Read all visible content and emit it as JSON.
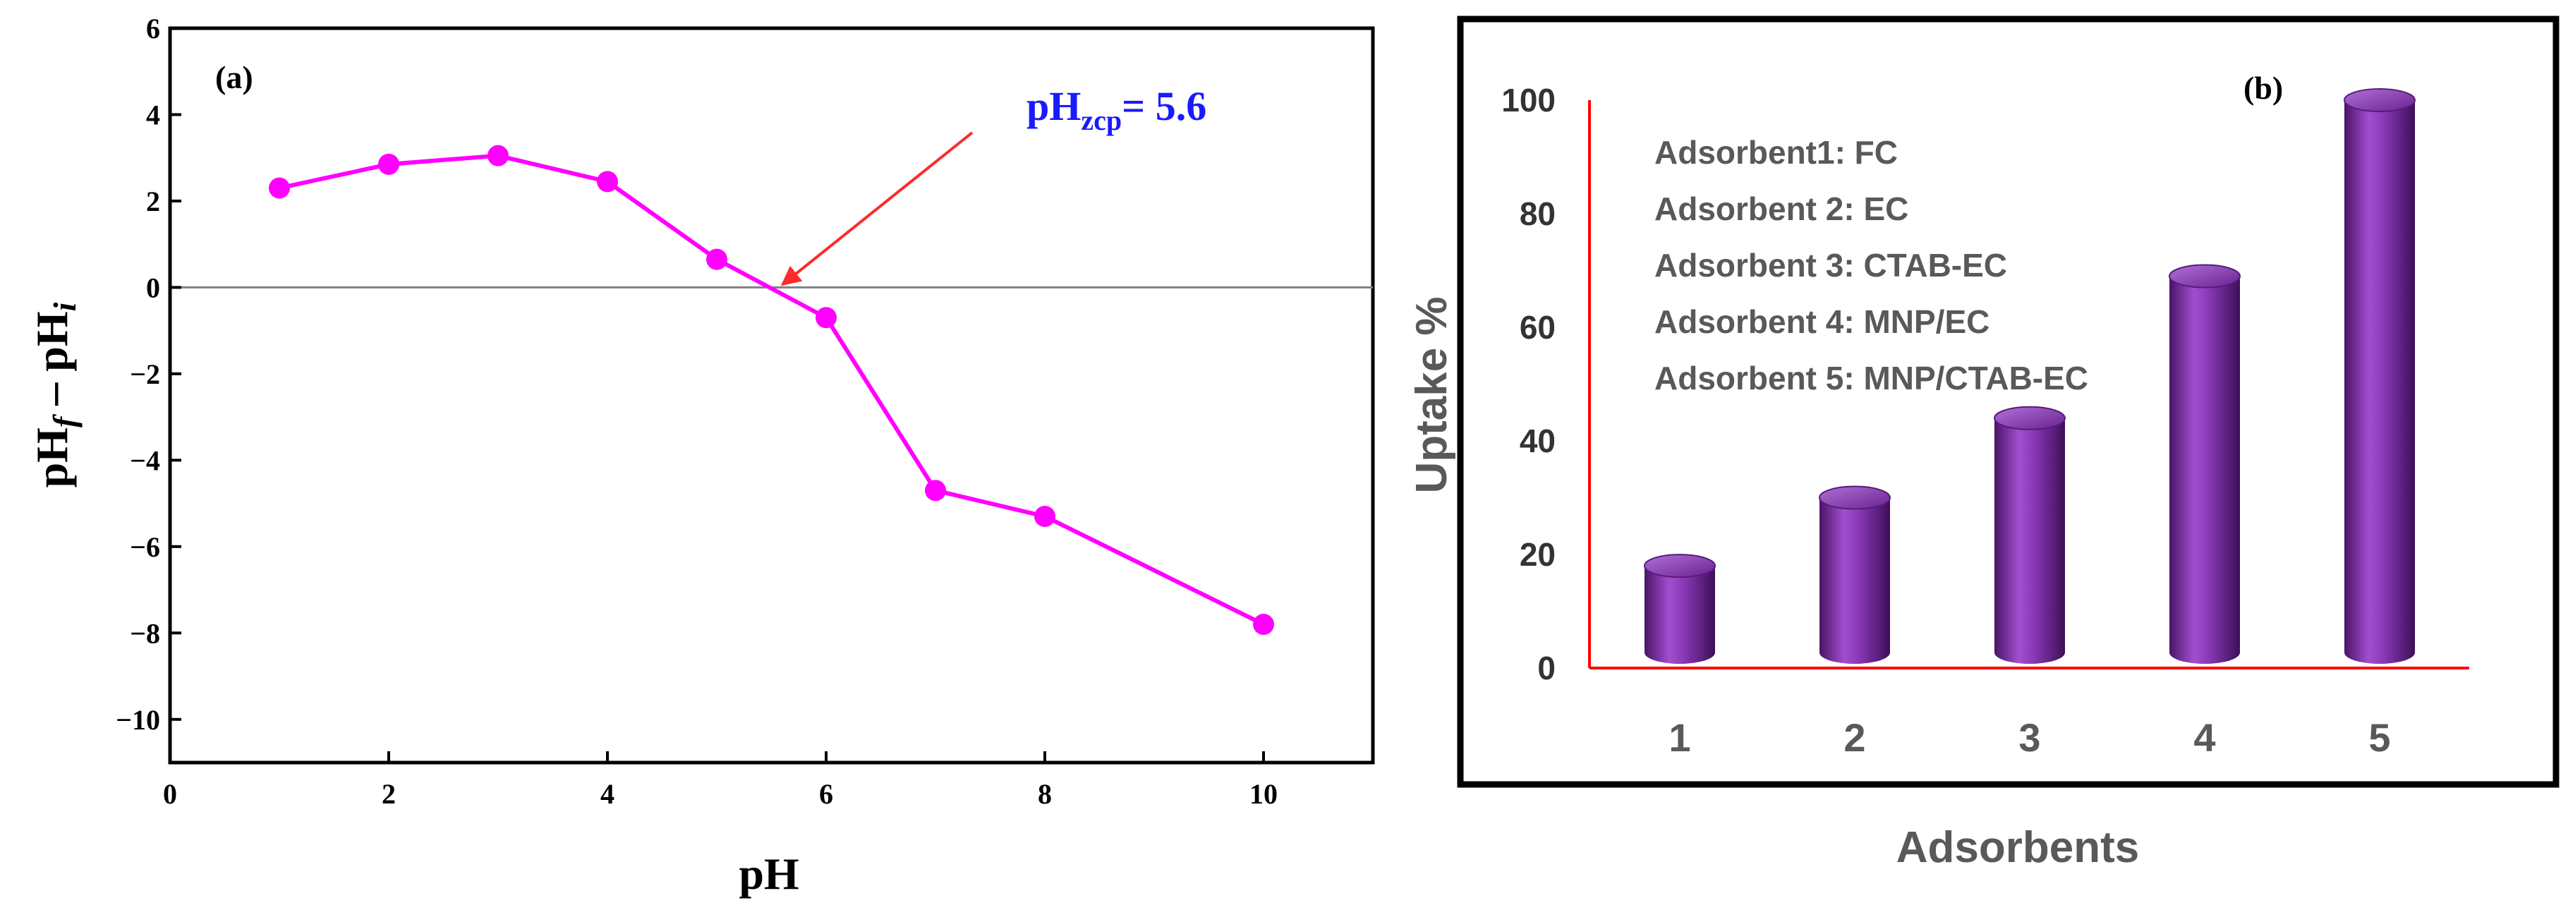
{
  "chart_data": [
    {
      "panel": "(a)",
      "type": "line",
      "title": "",
      "xlabel": "pH",
      "ylabel_main": "pH",
      "ylabel_sub1": "f",
      "ylabel_mid": " – pH",
      "ylabel_sub2": "i",
      "xlim": [
        0,
        11
      ],
      "ylim": [
        -11,
        6
      ],
      "xticks": [
        0,
        2,
        4,
        6,
        8,
        10
      ],
      "yticks": [
        6,
        4,
        2,
        0,
        -2,
        -4,
        -6,
        -8,
        -10
      ],
      "xtick_labels": [
        "0",
        "2",
        "4",
        "6",
        "8",
        "10"
      ],
      "ytick_labels": [
        "6",
        "4",
        "2",
        "0",
        "−2",
        "−4",
        "−6",
        "−8",
        "−10"
      ],
      "reference_line_y": 0,
      "series": [
        {
          "name": "pHf - pHi",
          "color": "#ff00ff",
          "x": [
            1,
            2,
            3,
            4,
            5,
            6,
            7,
            8,
            10
          ],
          "y": [
            2.3,
            2.85,
            3.05,
            2.45,
            0.65,
            -0.7,
            -4.7,
            -5.3,
            -7.8
          ]
        }
      ],
      "annotation": {
        "main": "pH",
        "sub": "zcp",
        "rest": "= 5.6",
        "color": "#1a1aff",
        "arrow_color": "#ff3333",
        "point_x": 5.6,
        "point_y": 0
      }
    },
    {
      "panel": "(b)",
      "type": "bar",
      "title": "",
      "xlabel": "Adsorbents",
      "ylabel": "Uptake %",
      "categories": [
        "1",
        "2",
        "3",
        "4",
        "5"
      ],
      "values": [
        18,
        30,
        44,
        69,
        100
      ],
      "ylim": [
        0,
        100
      ],
      "yticks": [
        0,
        20,
        40,
        60,
        80,
        100
      ],
      "ytick_labels": [
        "0",
        "20",
        "40",
        "60",
        "80",
        "100"
      ],
      "bar_color": "#7a2a9c",
      "axis_color": "#ff0000",
      "legend": [
        "Adsorbent1: FC",
        "Adsorbent 2: EC",
        "Adsorbent 3: CTAB-EC",
        "Adsorbent 4: MNP/EC",
        "Adsorbent 5: MNP/CTAB-EC"
      ]
    }
  ]
}
